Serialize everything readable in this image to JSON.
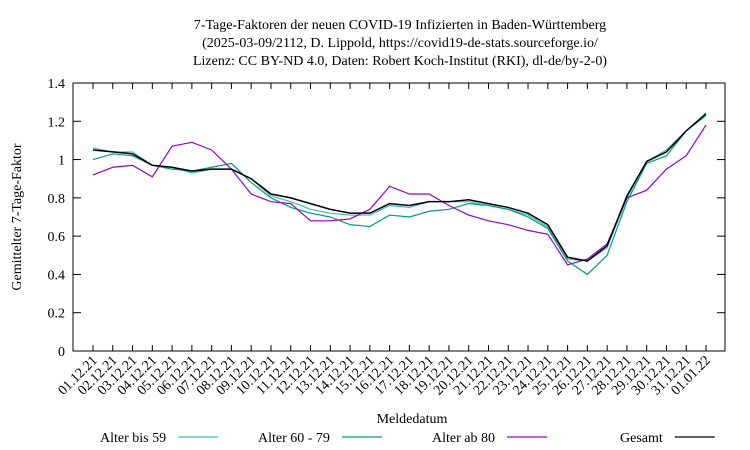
{
  "chart_data": {
    "type": "line",
    "title": [
      "7-Tage-Faktoren der neuen COVID-19 Infizierten in Baden-Württemberg",
      "(2025-03-09/2112, D. Lippold, https://covid19-de-stats.sourceforge.io/",
      "Lizenz: CC BY-ND 4.0, Daten: Robert Koch-Institut (RKI), dl-de/by-2-0)"
    ],
    "x_label": "Meldedatum",
    "y_label": "Gemittelter 7-Tage-Faktor",
    "categories": [
      "01.12.21",
      "02.12.21",
      "03.12.21",
      "04.12.21",
      "05.12.21",
      "06.12.21",
      "07.12.21",
      "08.12.21",
      "09.12.21",
      "10.12.21",
      "11.12.21",
      "12.12.21",
      "13.12.21",
      "14.12.21",
      "15.12.21",
      "16.12.21",
      "17.12.21",
      "18.12.21",
      "19.12.21",
      "20.12.21",
      "21.12.21",
      "22.12.21",
      "23.12.21",
      "24.12.21",
      "25.12.21",
      "26.12.21",
      "27.12.21",
      "28.12.21",
      "29.12.21",
      "30.12.21",
      "31.12.21",
      "01.01.22"
    ],
    "series": [
      {
        "name": "Alter bis 59",
        "color": "#3db7c4",
        "values": [
          1.06,
          1.04,
          1.04,
          0.97,
          0.96,
          0.93,
          0.95,
          0.95,
          0.9,
          0.81,
          0.78,
          0.74,
          0.72,
          0.71,
          0.71,
          0.76,
          0.75,
          0.78,
          0.78,
          0.78,
          0.76,
          0.74,
          0.71,
          0.65,
          0.48,
          0.47,
          0.54,
          0.8,
          0.99,
          1.05,
          1.15,
          1.24
        ]
      },
      {
        "name": "Alter 60 - 79",
        "color": "#009e73",
        "values": [
          1.0,
          1.03,
          1.02,
          0.97,
          0.95,
          0.94,
          0.96,
          0.98,
          0.88,
          0.8,
          0.75,
          0.72,
          0.7,
          0.66,
          0.65,
          0.71,
          0.7,
          0.73,
          0.74,
          0.77,
          0.76,
          0.74,
          0.7,
          0.64,
          0.47,
          0.4,
          0.5,
          0.78,
          0.98,
          1.02,
          1.15,
          1.23
        ]
      },
      {
        "name": "Alter ab 80",
        "color": "#9400d3",
        "values": [
          0.92,
          0.96,
          0.97,
          0.91,
          1.07,
          1.09,
          1.05,
          0.95,
          0.82,
          0.78,
          0.77,
          0.68,
          0.68,
          0.69,
          0.74,
          0.86,
          0.82,
          0.82,
          0.76,
          0.71,
          0.68,
          0.66,
          0.63,
          0.61,
          0.45,
          0.48,
          0.56,
          0.8,
          0.84,
          0.95,
          1.02,
          1.18
        ]
      },
      {
        "name": "Gesamt",
        "color": "#000000",
        "values": [
          1.05,
          1.04,
          1.03,
          0.97,
          0.96,
          0.94,
          0.95,
          0.95,
          0.9,
          0.82,
          0.8,
          0.77,
          0.74,
          0.72,
          0.72,
          0.77,
          0.76,
          0.78,
          0.78,
          0.79,
          0.77,
          0.75,
          0.72,
          0.66,
          0.49,
          0.47,
          0.55,
          0.81,
          0.99,
          1.04,
          1.15,
          1.24
        ]
      }
    ],
    "ylim": [
      0,
      1.4
    ],
    "yticks": [
      0,
      0.2,
      0.4,
      0.6,
      0.8,
      1,
      1.2,
      1.4
    ]
  }
}
